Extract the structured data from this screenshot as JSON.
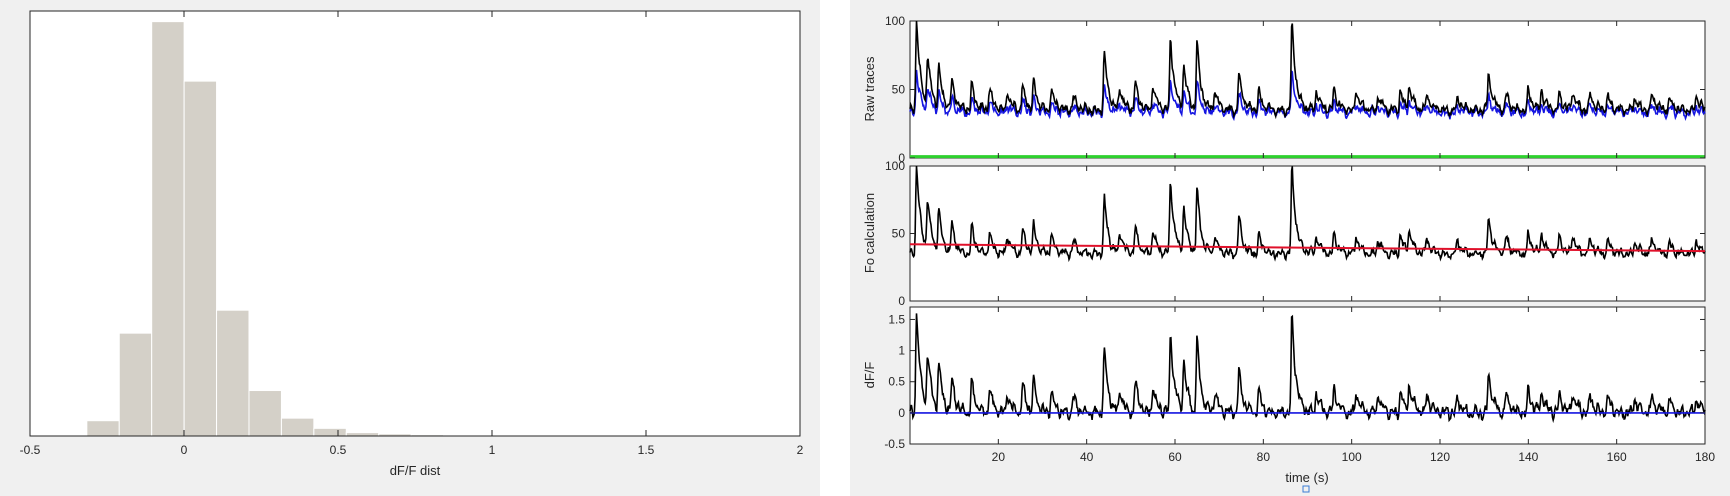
{
  "colors": {
    "figure_bg": "#f0f0f0",
    "axes_bg": "#ffffff",
    "axis_line": "#262626",
    "hist_fill": "#d4d0c8",
    "hist_edge": "#ffffff",
    "trace_black": "#000000",
    "trace_blue": "#1515e0",
    "baseline_green": "#2ed12e",
    "baseline_red": "#e0102a"
  },
  "chart_data": [
    {
      "type": "bar",
      "title": "",
      "xlabel": "dF/F dist",
      "ylabel": "",
      "xlim": [
        -0.5,
        2
      ],
      "xticks": [
        -0.5,
        0,
        0.5,
        1,
        1.5,
        2
      ],
      "xtick_labels": [
        "-0.5",
        "0",
        "0.5",
        "1",
        "1.5",
        "2"
      ],
      "ylim": [
        0,
        100
      ],
      "yticks": [],
      "bin_width": 0.1053,
      "bin_left_edges": [
        -0.3155,
        -0.2102,
        -0.1049,
        0.0004,
        0.1057,
        0.211,
        0.3163,
        0.4216,
        0.5269,
        0.6322,
        0.7375,
        0.8428,
        0.9481,
        1.0534,
        1.1587,
        1.264,
        1.3693,
        1.4746,
        1.5799,
        1.6852
      ],
      "values": [
        3.6,
        24.2,
        97.5,
        83.5,
        29.6,
        10.7,
        4.2,
        1.8,
        0.8,
        0.5,
        0.3,
        0.1,
        0.1,
        0.1,
        0,
        0,
        0,
        0,
        0,
        0.1
      ],
      "grid": false,
      "legend": "none"
    },
    {
      "type": "line",
      "ylabel": "Raw traces",
      "xlabel": "",
      "xlim": [
        0,
        180
      ],
      "xticks": [
        20,
        40,
        60,
        80,
        100,
        120,
        140,
        160,
        180
      ],
      "xtick_labels": [],
      "ylim": [
        0,
        100
      ],
      "yticks": [
        0,
        50,
        100
      ],
      "ytick_labels": [
        "0",
        "50",
        "100"
      ],
      "series": [
        {
          "color": "#000000",
          "kind": "fluorescence trace",
          "baseline": 35,
          "noise_amplitude": 3,
          "peak_scale": 1
        },
        {
          "color": "#1515e0",
          "kind": "fluorescence trace",
          "baseline": 33,
          "noise_amplitude": 3,
          "peak_scale": 0.45
        },
        {
          "color": "#2ed12e",
          "kind": "constant",
          "value": 1
        }
      ],
      "peaks": {
        "t": [
          1.5,
          4,
          6.5,
          9.5,
          14,
          18,
          22,
          25.5,
          28,
          32,
          37,
          44,
          47.5,
          51,
          55,
          59,
          62,
          65,
          69,
          74.5,
          79,
          86.5,
          92,
          96,
          101,
          106,
          111,
          113,
          117,
          124,
          131,
          135,
          140,
          143,
          147,
          150,
          154,
          158,
          164,
          168,
          172,
          178
        ],
        "height": [
          68,
          38,
          32,
          22,
          20,
          16,
          14,
          18,
          20,
          14,
          10,
          42,
          16,
          20,
          18,
          54,
          33,
          48,
          14,
          28,
          14,
          66,
          14,
          16,
          14,
          12,
          14,
          18,
          12,
          10,
          28,
          12,
          16,
          14,
          12,
          14,
          12,
          10,
          10,
          12,
          8,
          10
        ]
      },
      "grid": false,
      "legend": "none"
    },
    {
      "type": "line",
      "ylabel": "Fo calculation",
      "xlabel": "",
      "xlim": [
        0,
        180
      ],
      "xticks": [
        20,
        40,
        60,
        80,
        100,
        120,
        140,
        160,
        180
      ],
      "xtick_labels": [],
      "ylim": [
        0,
        100
      ],
      "yticks": [
        0,
        50,
        100
      ],
      "ytick_labels": [
        "0",
        "50",
        "100"
      ],
      "series": [
        {
          "color": "#000000",
          "kind": "fluorescence trace",
          "baseline": 35,
          "noise_amplitude": 3,
          "peak_scale": 1
        },
        {
          "color": "#e0102a",
          "kind": "linear",
          "x": [
            0,
            180
          ],
          "y": [
            42,
            37
          ]
        }
      ],
      "grid": false,
      "legend": "none"
    },
    {
      "type": "line",
      "ylabel": "dF/F",
      "xlabel": "time (s)",
      "xlim": [
        0,
        180
      ],
      "xticks": [
        20,
        40,
        60,
        80,
        100,
        120,
        140,
        160,
        180
      ],
      "xtick_labels": [
        "20",
        "40",
        "60",
        "80",
        "100",
        "120",
        "140",
        "160",
        "180"
      ],
      "ylim": [
        -0.5,
        1.7
      ],
      "yticks": [
        -0.5,
        0,
        0.5,
        1,
        1.5
      ],
      "ytick_labels": [
        "-0.5",
        "0",
        "0.5",
        "1",
        "1.5"
      ],
      "series": [
        {
          "color": "#000000",
          "kind": "dF/F trace",
          "baseline": 0,
          "noise_amplitude": 0.09,
          "peak_scale": 0.0245
        },
        {
          "color": "#1515e0",
          "kind": "constant",
          "value": 0
        }
      ],
      "grid": false,
      "legend": "none"
    }
  ]
}
